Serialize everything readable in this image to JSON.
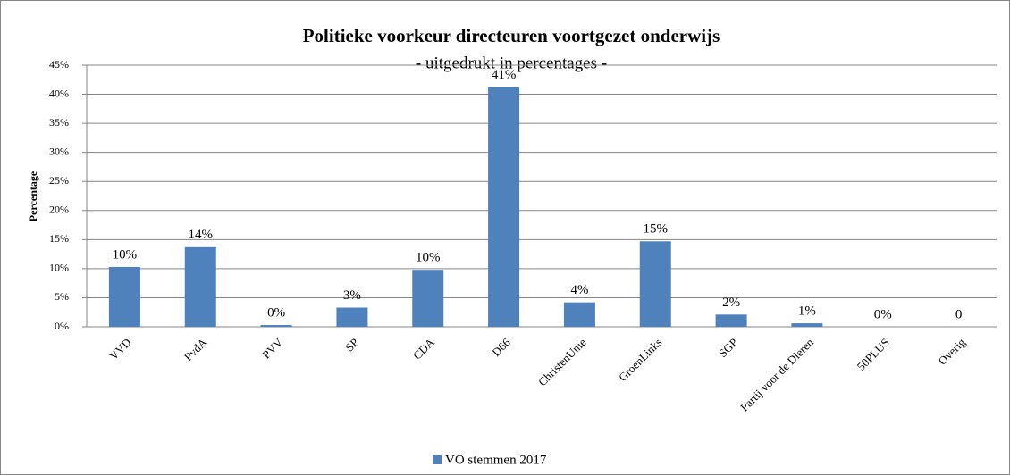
{
  "chart_data": {
    "type": "bar",
    "title": "Politieke voorkeur directeuren voortgezet onderwijs",
    "subtitle": "- uitgedrukt in percentages -",
    "y_label": "Percentage",
    "categories": [
      "VVD",
      "PvdA",
      "PVV",
      "SP",
      "CDA",
      "D66",
      "ChristenUnie",
      "GroenLinks",
      "SGP",
      "Partij voor de Dieren",
      "50PLUS",
      "Overig"
    ],
    "series": [
      {
        "name": "VO stemmen 2017",
        "color": "#4f81bd",
        "values": [
          10.3,
          13.7,
          0.3,
          3.3,
          9.8,
          41.2,
          4.2,
          14.7,
          2.1,
          0.6,
          0,
          0
        ],
        "value_labels": [
          "10%",
          "14%",
          "0%",
          "3%",
          "10%",
          "41%",
          "4%",
          "15%",
          "2%",
          "1%",
          "0%",
          "0"
        ]
      }
    ],
    "ylim": [
      0,
      45
    ],
    "yticks": [
      {
        "value": 0,
        "label": "0%"
      },
      {
        "value": 5,
        "label": "5%"
      },
      {
        "value": 10,
        "label": "10%"
      },
      {
        "value": 15,
        "label": "15%"
      },
      {
        "value": 20,
        "label": "20%"
      },
      {
        "value": 25,
        "label": "25%"
      },
      {
        "value": 30,
        "label": "30%"
      },
      {
        "value": 35,
        "label": "35%"
      },
      {
        "value": 40,
        "label": "40%"
      },
      {
        "value": 45,
        "label": "45%"
      }
    ],
    "grid": true,
    "legend": "bottom"
  }
}
